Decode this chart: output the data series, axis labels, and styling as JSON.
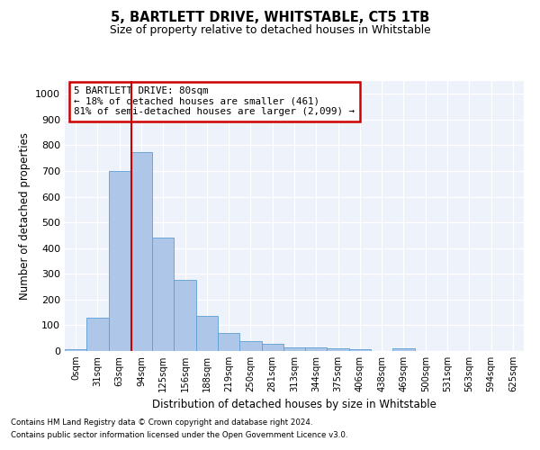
{
  "title1": "5, BARTLETT DRIVE, WHITSTABLE, CT5 1TB",
  "title2": "Size of property relative to detached houses in Whitstable",
  "xlabel": "Distribution of detached houses by size in Whitstable",
  "ylabel": "Number of detached properties",
  "categories": [
    "0sqm",
    "31sqm",
    "63sqm",
    "94sqm",
    "125sqm",
    "156sqm",
    "188sqm",
    "219sqm",
    "250sqm",
    "281sqm",
    "313sqm",
    "344sqm",
    "375sqm",
    "406sqm",
    "438sqm",
    "469sqm",
    "500sqm",
    "531sqm",
    "563sqm",
    "594sqm",
    "625sqm"
  ],
  "values": [
    8,
    130,
    700,
    775,
    440,
    275,
    135,
    70,
    40,
    28,
    15,
    13,
    10,
    8,
    0,
    10,
    0,
    0,
    0,
    0,
    0
  ],
  "bar_color": "#aec6e8",
  "bar_edge_color": "#5a9fd4",
  "bar_width": 1.0,
  "vline_color": "#cc0000",
  "ylim": [
    0,
    1050
  ],
  "yticks": [
    0,
    100,
    200,
    300,
    400,
    500,
    600,
    700,
    800,
    900,
    1000
  ],
  "annotation_text": "5 BARTLETT DRIVE: 80sqm\n← 18% of detached houses are smaller (461)\n81% of semi-detached houses are larger (2,099) →",
  "annotation_box_color": "#ffffff",
  "annotation_box_edgecolor": "#cc0000",
  "bg_color": "#eef2fb",
  "footer1": "Contains HM Land Registry data © Crown copyright and database right 2024.",
  "footer2": "Contains public sector information licensed under the Open Government Licence v3.0."
}
